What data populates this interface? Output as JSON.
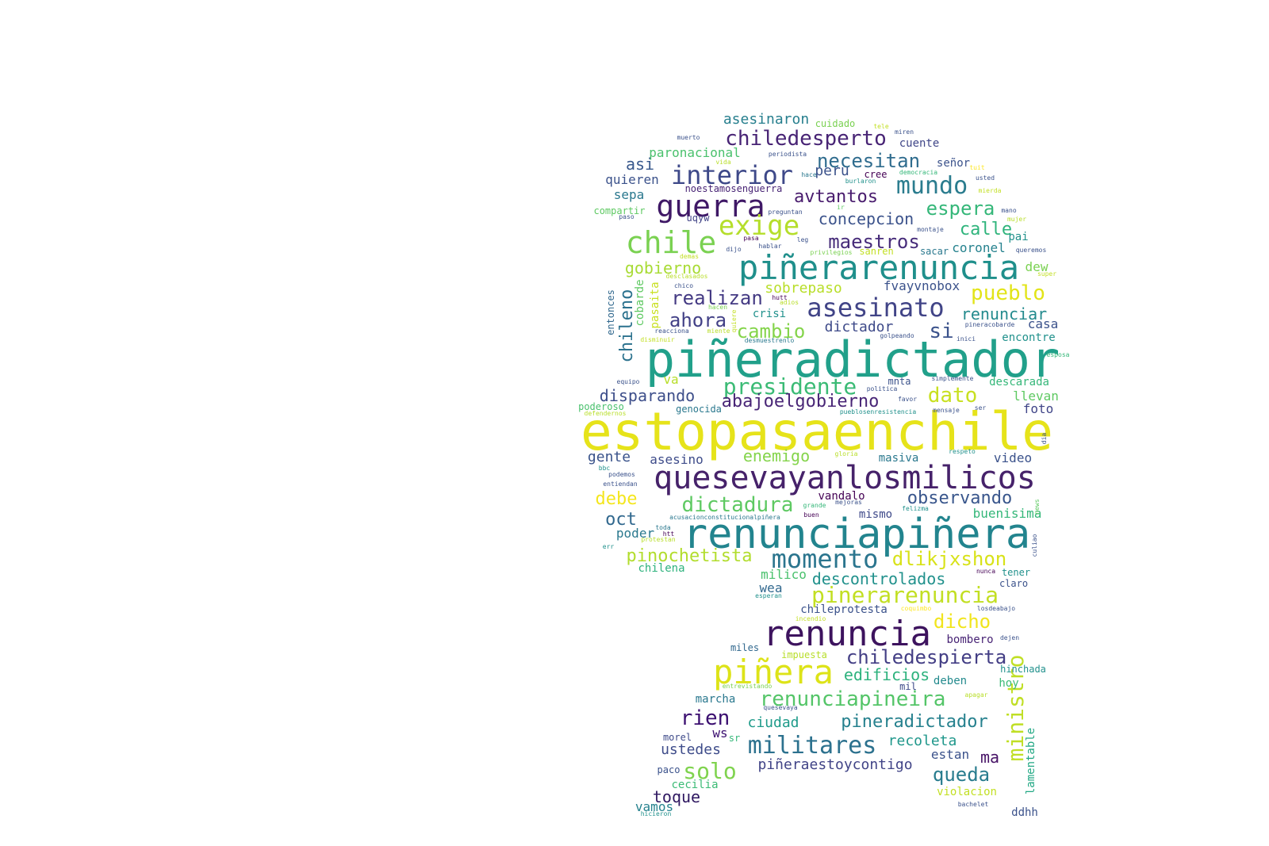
{
  "word_cloud": {
    "palette": [
      "#440154",
      "#3b528b",
      "#21918c",
      "#5ec962",
      "#fde725"
    ],
    "words": [
      {
        "text": "estopasaenchile",
        "c": "#e6e31a"
      },
      {
        "text": "piñeradictador",
        "c": "#21a08a"
      },
      {
        "text": "quesevayanlosmilicos",
        "c": "#46226a"
      },
      {
        "text": "renunciapiñera",
        "c": "#22848e"
      },
      {
        "text": "piñerarenuncia",
        "c": "#1f8f8b"
      },
      {
        "text": "renuncia",
        "c": "#3d135e"
      },
      {
        "text": "piñera",
        "c": "#dde318"
      },
      {
        "text": "guerra",
        "c": "#3f1866"
      },
      {
        "text": "chile",
        "c": "#7ad151"
      },
      {
        "text": "interior",
        "c": "#3e4989"
      },
      {
        "text": "mundo",
        "c": "#2a7c8e"
      },
      {
        "text": "exige",
        "c": "#b5de2b"
      },
      {
        "text": "asesinato",
        "c": "#414487"
      },
      {
        "text": "momento",
        "c": "#2b758e"
      },
      {
        "text": "chiledesperto",
        "c": "#482475"
      },
      {
        "text": "presidente",
        "c": "#3bbb75"
      },
      {
        "text": "militares",
        "c": "#2c718e"
      },
      {
        "text": "pinerarenuncia",
        "c": "#c2df23"
      },
      {
        "text": "necesitan",
        "c": "#2f6c8e"
      },
      {
        "text": "maestros",
        "c": "#472c7a"
      },
      {
        "text": "chiledespierta",
        "c": "#433e85"
      },
      {
        "text": "dictadura",
        "c": "#5ec962"
      },
      {
        "text": "observando",
        "c": "#39568c"
      },
      {
        "text": "dlikjxshon",
        "c": "#d8e219"
      },
      {
        "text": "renunciapineira",
        "c": "#54c568"
      },
      {
        "text": "pineradictador",
        "c": "#26818e"
      },
      {
        "text": "ministro",
        "c": "#c0df25"
      },
      {
        "text": "realizan",
        "c": "#443a83"
      },
      {
        "text": "espera",
        "c": "#35b779"
      },
      {
        "text": "pueblo",
        "c": "#e2e418"
      },
      {
        "text": "dato",
        "c": "#c8e020"
      },
      {
        "text": "dicho",
        "c": "#f1e51d"
      },
      {
        "text": "cambio",
        "c": "#84d44b"
      },
      {
        "text": "ahora",
        "c": "#424086"
      },
      {
        "text": "abajoelgobierno",
        "c": "#482576"
      },
      {
        "text": "solo",
        "c": "#7fd34e"
      },
      {
        "text": "gobierno",
        "c": "#a8db34"
      },
      {
        "text": "concepcion",
        "c": "#3b528b"
      },
      {
        "text": "avtantos",
        "c": "#481b6d"
      },
      {
        "text": "calle",
        "c": "#2fb47c"
      },
      {
        "text": "renunciar",
        "c": "#238a8d"
      },
      {
        "text": "debe",
        "c": "#f4e61e"
      },
      {
        "text": "pinochetista",
        "c": "#b2dd2d"
      },
      {
        "text": "chileno",
        "c": "#2c728e"
      },
      {
        "text": "enemigo",
        "c": "#84d44b"
      },
      {
        "text": "rien",
        "c": "#3b0f70"
      },
      {
        "text": "queda",
        "c": "#287c8e"
      },
      {
        "text": "si",
        "c": "#3b528b"
      },
      {
        "text": "oct",
        "c": "#31688e"
      },
      {
        "text": "descontrolados",
        "c": "#21918c"
      },
      {
        "text": "edificios",
        "c": "#2db27d"
      },
      {
        "text": "disparando",
        "c": "#3d4e8a"
      },
      {
        "text": "sobrepaso",
        "c": "#b8de29"
      },
      {
        "text": "asesinaron",
        "c": "#277f8e"
      },
      {
        "text": "dictador",
        "c": "#3e4a89"
      },
      {
        "text": "asi",
        "c": "#38588c"
      },
      {
        "text": "gente",
        "c": "#3a538b"
      },
      {
        "text": "fvayvnobox",
        "c": "#3b528b"
      },
      {
        "text": "peru",
        "c": "#3b528b"
      },
      {
        "text": "recoleta",
        "c": "#1f978b"
      },
      {
        "text": "ciudad",
        "c": "#1e9b8a"
      },
      {
        "text": "piñeraestoycontigo",
        "c": "#414487"
      },
      {
        "text": "ustedes",
        "c": "#3e4c8a"
      },
      {
        "text": "toque",
        "c": "#2e1760"
      },
      {
        "text": "ma",
        "c": "#481467"
      },
      {
        "text": "ws",
        "c": "#3b0f70"
      },
      {
        "text": "llevan",
        "c": "#5ec962"
      },
      {
        "text": "foto",
        "c": "#404588"
      },
      {
        "text": "casa",
        "c": "#3b528b"
      },
      {
        "text": "coronel",
        "c": "#26828e"
      },
      {
        "text": "paronacional",
        "c": "#4ac16d"
      },
      {
        "text": "cuente",
        "c": "#404688"
      },
      {
        "text": "quieren",
        "c": "#3b528b"
      },
      {
        "text": "sepa",
        "c": "#2a788e"
      },
      {
        "text": "asesino",
        "c": "#3e4c8a"
      },
      {
        "text": "masiva",
        "c": "#2a788e"
      },
      {
        "text": "video",
        "c": "#3b528b"
      },
      {
        "text": "vandalo",
        "c": "#440154"
      },
      {
        "text": "mismo",
        "c": "#3e4989"
      },
      {
        "text": "buenisima",
        "c": "#35b779"
      },
      {
        "text": "poder",
        "c": "#2a788e"
      },
      {
        "text": "chilena",
        "c": "#2db27d"
      },
      {
        "text": "milico",
        "c": "#4ac16d"
      },
      {
        "text": "wea",
        "c": "#31688e"
      },
      {
        "text": "chileprotesta",
        "c": "#3b528b"
      },
      {
        "text": "bombero",
        "c": "#482475"
      },
      {
        "text": "hinchada",
        "c": "#21918c"
      },
      {
        "text": "deben",
        "c": "#238a8d"
      },
      {
        "text": "hoy",
        "c": "#3bbb75"
      },
      {
        "text": "marcha",
        "c": "#2a788e"
      },
      {
        "text": "estan",
        "c": "#3b528b"
      },
      {
        "text": "lamentable",
        "c": "#22a884"
      },
      {
        "text": "violacion",
        "c": "#c2df23"
      },
      {
        "text": "ddhh",
        "c": "#3b528b"
      },
      {
        "text": "vamos",
        "c": "#26828e"
      },
      {
        "text": "cecilia",
        "c": "#3bbb75"
      },
      {
        "text": "paco",
        "c": "#3b528b"
      },
      {
        "text": "morel",
        "c": "#3e4a89"
      },
      {
        "text": "sr",
        "c": "#35b779"
      },
      {
        "text": "impuesta",
        "c": "#b8de29"
      },
      {
        "text": "mil",
        "c": "#3e4a89"
      },
      {
        "text": "miles",
        "c": "#31688e"
      },
      {
        "text": "tener",
        "c": "#21918c"
      },
      {
        "text": "claro",
        "c": "#3b528b"
      },
      {
        "text": "va",
        "c": "#b8de29"
      },
      {
        "text": "mnta",
        "c": "#3b528b"
      },
      {
        "text": "descarada",
        "c": "#35b779"
      },
      {
        "text": "genocida",
        "c": "#2a788e"
      },
      {
        "text": "poderoso",
        "c": "#4ac16d"
      },
      {
        "text": "compartir",
        "c": "#5ec962"
      },
      {
        "text": "cuidado",
        "c": "#7ad151"
      },
      {
        "text": "señor",
        "c": "#3b528b"
      },
      {
        "text": "crisi",
        "c": "#21918c"
      },
      {
        "text": "encontre",
        "c": "#21918c"
      },
      {
        "text": "dew",
        "c": "#7ad151"
      },
      {
        "text": "pai",
        "c": "#21918c"
      },
      {
        "text": "sacar",
        "c": "#2a788e"
      },
      {
        "text": "sanren",
        "c": "#c2df23"
      },
      {
        "text": "cree",
        "c": "#440154"
      },
      {
        "text": "noestamosenguerra",
        "c": "#482475"
      },
      {
        "text": "entonces",
        "c": "#31688e"
      },
      {
        "text": "cobarde",
        "c": "#5ec962"
      },
      {
        "text": "pasaita",
        "c": "#c8e020"
      },
      {
        "text": "uqyw",
        "c": "#414487"
      },
      {
        "text": "leg",
        "c": "#3b528b"
      },
      {
        "text": "muerto",
        "c": "#3b528b"
      },
      {
        "text": "periodista",
        "c": "#3b528b"
      },
      {
        "text": "tele",
        "c": "#c2df23"
      },
      {
        "text": "miren",
        "c": "#3b528b"
      },
      {
        "text": "vida",
        "c": "#b8de29"
      },
      {
        "text": "hace",
        "c": "#2a788e"
      },
      {
        "text": "burlaron",
        "c": "#21918c"
      },
      {
        "text": "democracia",
        "c": "#35b779"
      },
      {
        "text": "tuit",
        "c": "#fde725"
      },
      {
        "text": "usted",
        "c": "#3b528b"
      },
      {
        "text": "mierda",
        "c": "#c2df23"
      },
      {
        "text": "preguntan",
        "c": "#3b528b"
      },
      {
        "text": "ir",
        "c": "#5ec962"
      },
      {
        "text": "mano",
        "c": "#3b528b"
      },
      {
        "text": "mujer",
        "c": "#b8de29"
      },
      {
        "text": "paso",
        "c": "#3b528b"
      },
      {
        "text": "montaje",
        "c": "#3b528b"
      },
      {
        "text": "pasa",
        "c": "#440154"
      },
      {
        "text": "hablar",
        "c": "#3b528b"
      },
      {
        "text": "dijo",
        "c": "#3b528b"
      },
      {
        "text": "privilegios",
        "c": "#7ad151"
      },
      {
        "text": "queremos",
        "c": "#3b528b"
      },
      {
        "text": "demas",
        "c": "#c2df23"
      },
      {
        "text": "desclasados",
        "c": "#b8de29"
      },
      {
        "text": "super",
        "c": "#c2df23"
      },
      {
        "text": "chico",
        "c": "#3b528b"
      },
      {
        "text": "hutt",
        "c": "#440154"
      },
      {
        "text": "adios",
        "c": "#b8de29"
      },
      {
        "text": "hacen",
        "c": "#7ad151"
      },
      {
        "text": "quiere",
        "c": "#c2df23"
      },
      {
        "text": "miente",
        "c": "#b8de29"
      },
      {
        "text": "reacciona",
        "c": "#3b528b"
      },
      {
        "text": "pineracobarde",
        "c": "#3b528b"
      },
      {
        "text": "golpeando",
        "c": "#3b528b"
      },
      {
        "text": "desmuestrenlo",
        "c": "#2a788e"
      },
      {
        "text": "disminuir",
        "c": "#c2df23"
      },
      {
        "text": "inici",
        "c": "#3b528b"
      },
      {
        "text": "esposa",
        "c": "#35b779"
      },
      {
        "text": "equipo",
        "c": "#3b528b"
      },
      {
        "text": "simplemente",
        "c": "#3b528b"
      },
      {
        "text": "politica",
        "c": "#3b528b"
      },
      {
        "text": "favor",
        "c": "#3b528b"
      },
      {
        "text": "defendernos",
        "c": "#b8de29"
      },
      {
        "text": "pueblosenresistencia",
        "c": "#21918c"
      },
      {
        "text": "mensaje",
        "c": "#3b528b"
      },
      {
        "text": "ser",
        "c": "#3b528b"
      },
      {
        "text": "dia",
        "c": "#3b528b"
      },
      {
        "text": "gloria",
        "c": "#b8de29"
      },
      {
        "text": "respeto",
        "c": "#21918c"
      },
      {
        "text": "bbc",
        "c": "#21918c"
      },
      {
        "text": "podemos",
        "c": "#3b528b"
      },
      {
        "text": "entiendan",
        "c": "#3b528b"
      },
      {
        "text": "grande",
        "c": "#35b779"
      },
      {
        "text": "mejoras",
        "c": "#3b528b"
      },
      {
        "text": "felizma",
        "c": "#21918c"
      },
      {
        "text": "news",
        "c": "#5ec962"
      },
      {
        "text": "acusacionconstitucionalpiñera",
        "c": "#2a788e"
      },
      {
        "text": "buen",
        "c": "#440154"
      },
      {
        "text": "toda",
        "c": "#2a788e"
      },
      {
        "text": "htt",
        "c": "#440154"
      },
      {
        "text": "protestan",
        "c": "#b8de29"
      },
      {
        "text": "err",
        "c": "#21918c"
      },
      {
        "text": "culiao",
        "c": "#3b528b"
      },
      {
        "text": "nunca",
        "c": "#440154"
      },
      {
        "text": "esperan",
        "c": "#21918c"
      },
      {
        "text": "coquimbo",
        "c": "#fde725"
      },
      {
        "text": "losdeabajo",
        "c": "#3b528b"
      },
      {
        "text": "incendio",
        "c": "#c2df23"
      },
      {
        "text": "dejen",
        "c": "#3b528b"
      },
      {
        "text": "entrevistando",
        "c": "#7ad151"
      },
      {
        "text": "apagar",
        "c": "#b8de29"
      },
      {
        "text": "quesevaya",
        "c": "#3b528b"
      },
      {
        "text": "bachelet",
        "c": "#3b528b"
      },
      {
        "text": "hicieron",
        "c": "#21918c"
      }
    ]
  }
}
